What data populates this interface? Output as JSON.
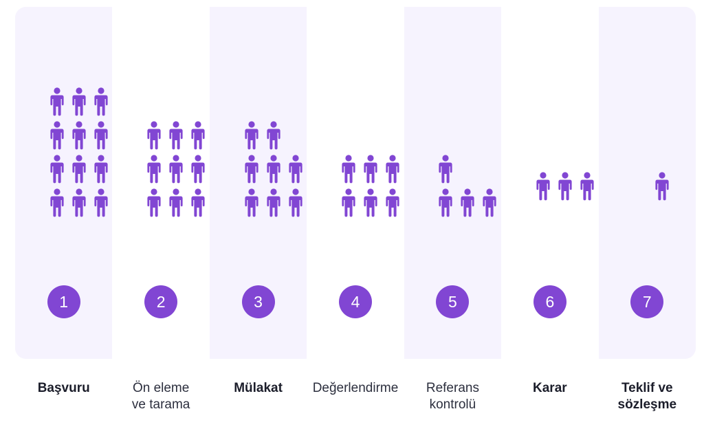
{
  "colors": {
    "accent": "#8146d3",
    "shaded_column": "#f6f3fe",
    "plain_column": "#ffffff",
    "label_text": "#2c2f3e"
  },
  "stages": [
    {
      "number": "1",
      "label": "Başvuru",
      "people": 12,
      "bold": true
    },
    {
      "number": "2",
      "label": "Ön eleme\nve tarama",
      "people": 9,
      "bold": false
    },
    {
      "number": "3",
      "label": "Mülakat",
      "people": 8,
      "bold": true
    },
    {
      "number": "4",
      "label": "Değerlendirme",
      "people": 6,
      "bold": false
    },
    {
      "number": "5",
      "label": "Referans\nkontrolü",
      "people": 4,
      "bold": false
    },
    {
      "number": "6",
      "label": "Karar",
      "people": 3,
      "bold": true
    },
    {
      "number": "7",
      "label": "Teklif ve\nsözleşme",
      "people": 1,
      "bold": true
    }
  ],
  "icon_name": "person-icon"
}
